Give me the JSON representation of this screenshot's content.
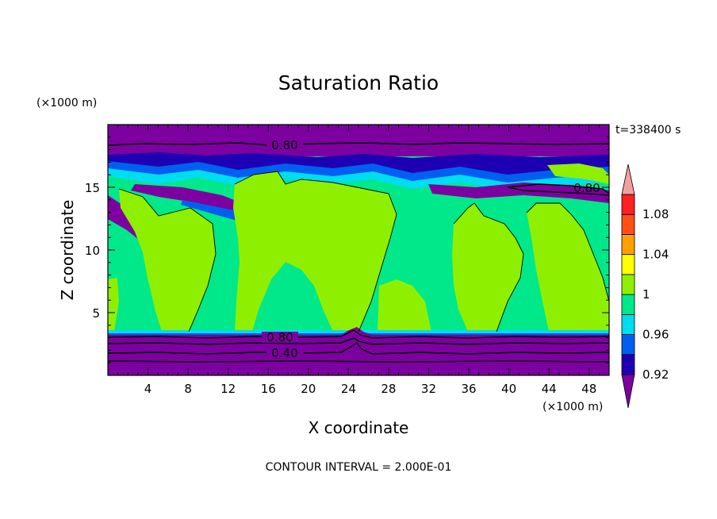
{
  "chart_data": {
    "type": "heatmap",
    "title": "Saturation Ratio",
    "xlabel": "X coordinate",
    "ylabel": "Z coordinate",
    "x_units": "(×1000 m)",
    "y_units": "(×1000 m)",
    "xlim": [
      0,
      50
    ],
    "ylim": [
      0,
      20
    ],
    "x_ticks": [
      "4",
      "8",
      "12",
      "16",
      "20",
      "24",
      "28",
      "32",
      "36",
      "40",
      "44",
      "48"
    ],
    "y_ticks": [
      "5",
      "10",
      "15"
    ],
    "time_label": "t=338400 s",
    "footer": "CONTOUR INTERVAL = 2.000E-01",
    "contour_labels": [
      "0.80",
      "0.80",
      "0.80",
      "0.40"
    ],
    "colorbar": {
      "labels": [
        "1.08",
        "1.04",
        "1",
        "0.96",
        "0.92"
      ],
      "levels": [
        {
          "color": "#7d00a0"
        },
        {
          "color": "#1e00b4"
        },
        {
          "color": "#005ff0"
        },
        {
          "color": "#00dcf0"
        },
        {
          "color": "#00e88a"
        },
        {
          "color": "#8ef000"
        },
        {
          "color": "#ffff00"
        },
        {
          "color": "#ffa000"
        },
        {
          "color": "#ff5014"
        },
        {
          "color": "#ff2020"
        },
        {
          "color": "#f0a0a0"
        }
      ]
    },
    "colors": {
      "background_field": "#00e88a",
      "dry_layer": "#7d00a0",
      "cloud_core": "#8ef000",
      "deep_blue": "#1e00b4",
      "medium_blue": "#005ff0",
      "cyan": "#00dcf0"
    }
  }
}
